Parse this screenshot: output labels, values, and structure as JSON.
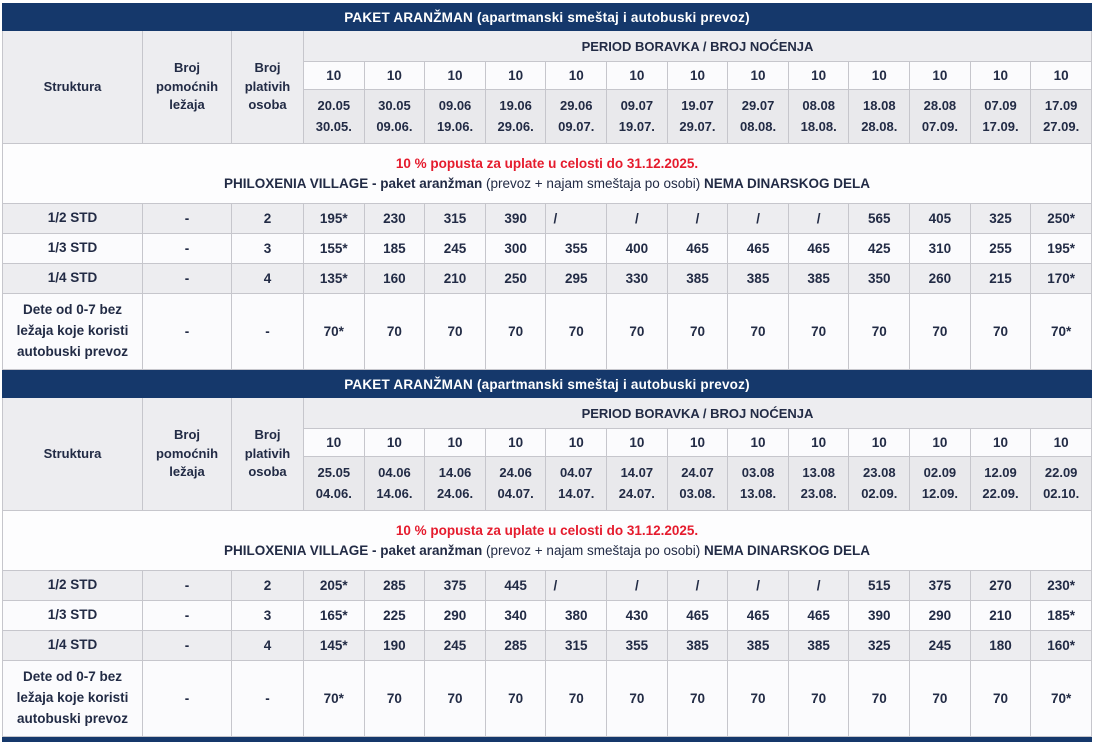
{
  "colors": {
    "navy": "#15386b",
    "red": "#e51b2d",
    "text_navy": "#222b45",
    "grid": "#c6c6cc",
    "header_gray": "#ededf0",
    "dates_gray": "#e9e9ec",
    "row_white": "#fbfbfd"
  },
  "tables": [
    {
      "title": "PAKET ARANŽMAN (apartmanski smeštaj i autobuski prevoz)",
      "headers": {
        "struktura": "Struktura",
        "pomocni": "Broj pomoćnih ležaja",
        "plativi": "Broj plativih osoba",
        "period": "PERIOD BORAVKA / BROJ NOĆENJA"
      },
      "nights": [
        "10",
        "10",
        "10",
        "10",
        "10",
        "10",
        "10",
        "10",
        "10",
        "10",
        "10",
        "10",
        "10"
      ],
      "periods": [
        {
          "from": "20.05",
          "to": "30.05."
        },
        {
          "from": "30.05",
          "to": "09.06."
        },
        {
          "from": "09.06",
          "to": "19.06."
        },
        {
          "from": "19.06",
          "to": "29.06."
        },
        {
          "from": "29.06",
          "to": "09.07."
        },
        {
          "from": "09.07",
          "to": "19.07."
        },
        {
          "from": "19.07",
          "to": "29.07."
        },
        {
          "from": "29.07",
          "to": "08.08."
        },
        {
          "from": "08.08",
          "to": "18.08."
        },
        {
          "from": "18.08",
          "to": "28.08."
        },
        {
          "from": "28.08",
          "to": "07.09."
        },
        {
          "from": "07.09",
          "to": "17.09."
        },
        {
          "from": "17.09",
          "to": "27.09."
        }
      ],
      "notice": {
        "discount": "10 % popusta za uplate u celosti do 31.12.2025.",
        "hotel_bold": "PHILOXENIA VILLAGE - paket aranžman",
        "hotel_normal": "(prevoz + najam smeštaja po osobi)",
        "hotel_bold2": "NEMA DINARSKOG DELA"
      },
      "rows": [
        {
          "label": "1/2 STD",
          "pomocni": "-",
          "plativi": "2",
          "values": [
            "195*",
            "230",
            "315",
            "390",
            "/",
            "/",
            "/",
            "/",
            "/",
            "565",
            "405",
            "325",
            "250*"
          ]
        },
        {
          "label": "1/3 STD",
          "pomocni": "-",
          "plativi": "3",
          "values": [
            "155*",
            "185",
            "245",
            "300",
            "355",
            "400",
            "465",
            "465",
            "465",
            "425",
            "310",
            "255",
            "195*"
          ]
        },
        {
          "label": "1/4 STD",
          "pomocni": "-",
          "plativi": "4",
          "values": [
            "135*",
            "160",
            "210",
            "250",
            "295",
            "330",
            "385",
            "385",
            "385",
            "350",
            "260",
            "215",
            "170*"
          ]
        },
        {
          "label": "Dete od 0-7 bez\nležaja koje koristi\nautobuski prevoz",
          "pomocni": "-",
          "plativi": "-",
          "values": [
            "70*",
            "70",
            "70",
            "70",
            "70",
            "70",
            "70",
            "70",
            "70",
            "70",
            "70",
            "70",
            "70*"
          ]
        }
      ]
    },
    {
      "title": "PAKET ARANŽMAN (apartmanski smeštaj i autobuski prevoz)",
      "headers": {
        "struktura": "Struktura",
        "pomocni": "Broj pomoćnih ležaja",
        "plativi": "Broj plativih osoba",
        "period": "PERIOD BORAVKA / BROJ NOĆENJA"
      },
      "nights": [
        "10",
        "10",
        "10",
        "10",
        "10",
        "10",
        "10",
        "10",
        "10",
        "10",
        "10",
        "10",
        "10"
      ],
      "periods": [
        {
          "from": "25.05",
          "to": "04.06."
        },
        {
          "from": "04.06",
          "to": "14.06."
        },
        {
          "from": "14.06",
          "to": "24.06."
        },
        {
          "from": "24.06",
          "to": "04.07."
        },
        {
          "from": "04.07",
          "to": "14.07."
        },
        {
          "from": "14.07",
          "to": "24.07."
        },
        {
          "from": "24.07",
          "to": "03.08."
        },
        {
          "from": "03.08",
          "to": "13.08."
        },
        {
          "from": "13.08",
          "to": "23.08."
        },
        {
          "from": "23.08",
          "to": "02.09."
        },
        {
          "from": "02.09",
          "to": "12.09."
        },
        {
          "from": "12.09",
          "to": "22.09."
        },
        {
          "from": "22.09",
          "to": "02.10."
        }
      ],
      "notice": {
        "discount": "10 % popusta za uplate u celosti do 31.12.2025.",
        "hotel_bold": "PHILOXENIA VILLAGE - paket aranžman",
        "hotel_normal": "(prevoz + najam smeštaja po osobi)",
        "hotel_bold2": "NEMA DINARSKOG DELA"
      },
      "rows": [
        {
          "label": "1/2 STD",
          "pomocni": "-",
          "plativi": "2",
          "values": [
            "205*",
            "285",
            "375",
            "445",
            "/",
            "/",
            "/",
            "/",
            "/",
            "515",
            "375",
            "270",
            "230*"
          ]
        },
        {
          "label": "1/3 STD",
          "pomocni": "-",
          "plativi": "3",
          "values": [
            "165*",
            "225",
            "290",
            "340",
            "380",
            "430",
            "465",
            "465",
            "465",
            "390",
            "290",
            "210",
            "185*"
          ]
        },
        {
          "label": "1/4 STD",
          "pomocni": "-",
          "plativi": "4",
          "values": [
            "145*",
            "190",
            "245",
            "285",
            "315",
            "355",
            "385",
            "385",
            "385",
            "325",
            "245",
            "180",
            "160*"
          ]
        },
        {
          "label": "Dete od 0-7 bez\nležaja koje koristi\nautobuski prevoz",
          "pomocni": "-",
          "plativi": "-",
          "values": [
            "70*",
            "70",
            "70",
            "70",
            "70",
            "70",
            "70",
            "70",
            "70",
            "70",
            "70",
            "70",
            "70*"
          ]
        }
      ]
    }
  ]
}
